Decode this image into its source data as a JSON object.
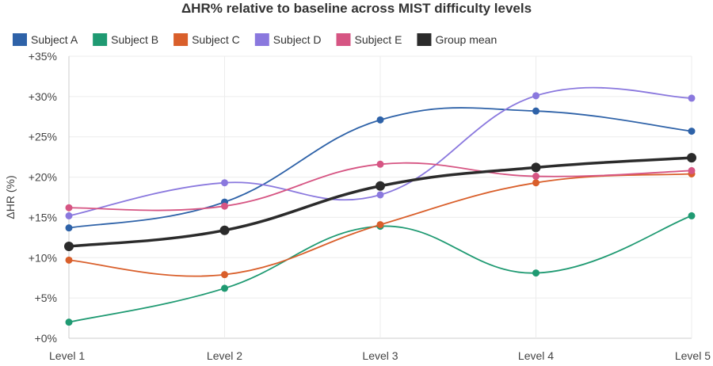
{
  "chart_data": {
    "type": "line",
    "title": "ΔHR% relative to baseline across MIST difficulty levels",
    "xlabel": "",
    "ylabel": "ΔHR (%)",
    "categories": [
      "Level 1",
      "Level 2",
      "Level 3",
      "Level 4",
      "Level 5"
    ],
    "ylim": [
      0,
      35
    ],
    "yticks": [
      0,
      5,
      10,
      15,
      20,
      25,
      30,
      35
    ],
    "ytick_labels": [
      "+0%",
      "+5%",
      "+10%",
      "+15%",
      "+20%",
      "+25%",
      "+30%",
      "+35%"
    ],
    "grid": true,
    "legend_position": "top-left",
    "smooth": true,
    "series": [
      {
        "name": "Subject A",
        "color": "#2e62a8",
        "values": [
          13.7,
          16.9,
          27.1,
          28.2,
          25.7
        ]
      },
      {
        "name": "Subject B",
        "color": "#1f9a72",
        "values": [
          2.0,
          6.2,
          13.9,
          8.1,
          15.2
        ]
      },
      {
        "name": "Subject C",
        "color": "#d95f2b",
        "values": [
          9.7,
          7.9,
          14.1,
          19.3,
          20.4
        ]
      },
      {
        "name": "Subject D",
        "color": "#8a78de",
        "values": [
          15.2,
          19.3,
          17.8,
          30.1,
          29.8
        ]
      },
      {
        "name": "Subject E",
        "color": "#d65583",
        "values": [
          16.2,
          16.4,
          21.6,
          20.1,
          20.8
        ]
      },
      {
        "name": "Group mean",
        "color": "#2b2b2b",
        "values": [
          11.4,
          13.4,
          18.9,
          21.2,
          22.4
        ],
        "bold": true
      }
    ]
  }
}
